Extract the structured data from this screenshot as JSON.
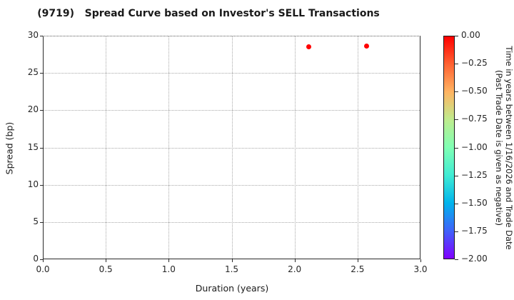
{
  "title": "(9719)   Spread Curve based on Investor's SELL Transactions",
  "colors": {
    "background": "#ffffff",
    "spine": "#2b2b2b",
    "gridline": "#a8a8a8",
    "text": "#1a1a1a",
    "point_red": "#ff0000"
  },
  "chart_data": {
    "type": "scatter",
    "title": "(9719)   Spread Curve based on Investor's SELL Transactions",
    "xlabel": "Duration (years)",
    "ylabel": "Spread (bp)",
    "xlim": [
      0.0,
      3.0
    ],
    "ylim": [
      0,
      30
    ],
    "x_ticks": [
      0.0,
      0.5,
      1.0,
      1.5,
      2.0,
      2.5,
      3.0
    ],
    "x_tick_labels": [
      "0.0",
      "0.5",
      "1.0",
      "1.5",
      "2.0",
      "2.5",
      "3.0"
    ],
    "y_ticks": [
      0,
      5,
      10,
      15,
      20,
      25,
      30
    ],
    "y_tick_labels": [
      "0",
      "5",
      "10",
      "15",
      "20",
      "25",
      "30"
    ],
    "grid": true,
    "legend": false,
    "points": [
      {
        "x": 2.11,
        "y": 28.5,
        "color": "#ff0000",
        "time_color_value": 0.0
      },
      {
        "x": 2.57,
        "y": 28.6,
        "color": "#ff0000",
        "time_color_value": 0.0
      }
    ],
    "colorbar": {
      "position": "right",
      "range_top": 0.0,
      "range_bottom": -2.0,
      "tick_labels": [
        "0.00",
        "−0.25",
        "−0.50",
        "−0.75",
        "−1.00",
        "−1.25",
        "−1.50",
        "−1.75",
        "−2.00"
      ],
      "label_line1": "Time in years between 1/16/2026 and Trade Date",
      "label_line2": "(Past Trade Date is given as negative)",
      "colormap": "rainbow (red=0.00 top, purple=−2.00 bottom)",
      "gradient_stops": [
        "#ff0000",
        "#ff6232",
        "#ffb462",
        "#bfec8e",
        "#80ffb4",
        "#40ecd4",
        "#00b4ec",
        "#4062fa",
        "#8000ff"
      ]
    }
  }
}
